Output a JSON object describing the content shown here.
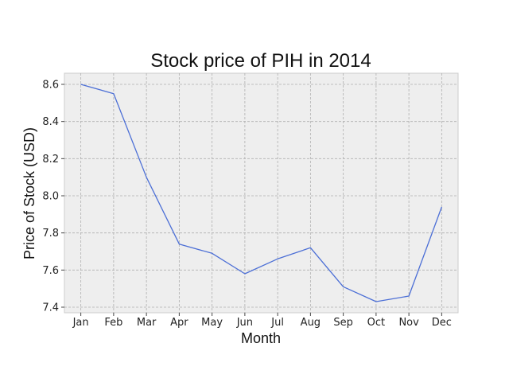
{
  "chart_data": {
    "type": "line",
    "title": "Stock price of PIH in 2014",
    "xlabel": "Month",
    "ylabel": "Price of Stock (USD)",
    "categories": [
      "Jan",
      "Feb",
      "Mar",
      "Apr",
      "May",
      "Jun",
      "Jul",
      "Aug",
      "Sep",
      "Oct",
      "Nov",
      "Dec"
    ],
    "series": [
      {
        "values": [
          8.6,
          8.55,
          8.1,
          7.74,
          7.69,
          7.58,
          7.66,
          7.72,
          7.51,
          7.43,
          7.46,
          7.94
        ]
      }
    ],
    "ylim": [
      7.37,
      8.66
    ],
    "yticks": [
      "7.4",
      "7.6",
      "7.8",
      "8.0",
      "8.2",
      "8.4",
      "8.6"
    ],
    "grid": true,
    "legend": "none",
    "colors": {
      "line": "#4c6fd6",
      "plot_background": "#eeeeee",
      "grid": "#b0b0b0",
      "frame": "#cccccc"
    }
  }
}
